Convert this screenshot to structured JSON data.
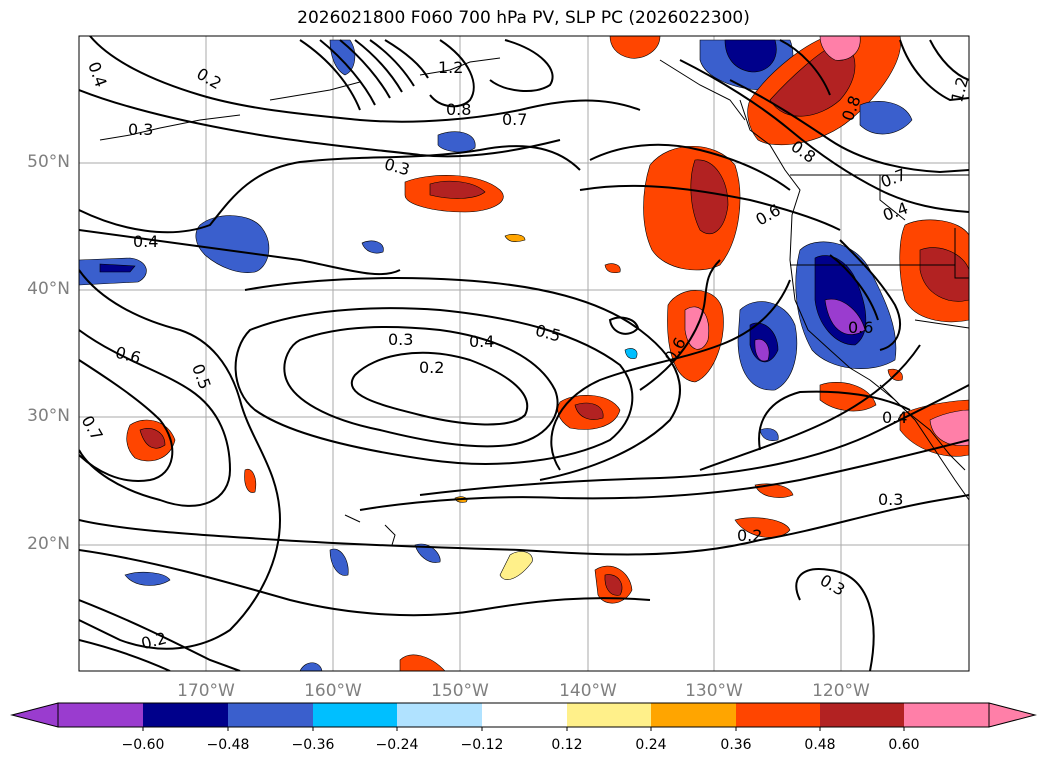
{
  "title": "2026021800 F060 700 hPa PV, SLP PC (2026022300)",
  "latitude_labels": [
    "50°N",
    "40°N",
    "30°N",
    "20°N"
  ],
  "longitude_labels": [
    "170°W",
    "160°W",
    "150°W",
    "140°W",
    "130°W",
    "120°W"
  ],
  "contour_labels": [
    "0.4",
    "0.2",
    "0.3",
    "1.2",
    "0.8",
    "0.7",
    "0.3",
    "0.4",
    "0.6",
    "0.5",
    "0.7",
    "0.3",
    "0.4",
    "0.5",
    "0.2",
    "0.6",
    "0.8",
    "0.6",
    "0.7",
    "0.4",
    "0.6",
    "0.4",
    "0.3",
    "0.2",
    "0.3",
    "0.2",
    "1.2",
    "0.8"
  ],
  "colorbar": {
    "tick_labels": [
      "−0.60",
      "−0.48",
      "−0.36",
      "−0.24",
      "−0.12",
      "0.12",
      "0.24",
      "0.36",
      "0.48",
      "0.60"
    ],
    "colors": [
      "#9a3ccf",
      "#00008b",
      "#3a5fcd",
      "#00bfff",
      "#b0e2ff",
      "#ffffff",
      "#fff08a",
      "#ffa500",
      "#ff4500",
      "#b22222",
      "#ff7fa8"
    ]
  },
  "chart_data": {
    "type": "map",
    "title": "2026021800 F060 700 hPa PV, SLP PC (2026022300)",
    "variable_shaded": "700 hPa PV anomaly",
    "variable_contoured": "SLP PC",
    "lat_range": [
      10,
      60
    ],
    "lon_range": [
      -180,
      -110
    ],
    "bounds": [
      -0.6,
      -0.48,
      -0.36,
      -0.24,
      -0.12,
      0.12,
      0.24,
      0.36,
      0.48,
      0.6
    ]
  }
}
